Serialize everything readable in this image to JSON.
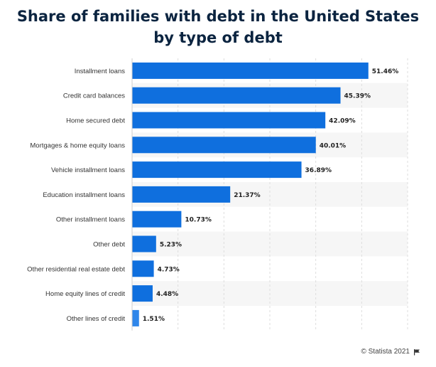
{
  "chart_data": {
    "type": "bar",
    "orientation": "horizontal",
    "title_lines": [
      "Share of families with debt in the United States",
      "by type of debt"
    ],
    "title": "Share of families with debt in the United States by type of debt",
    "categories": [
      "Installment loans",
      "Credit card balances",
      "Home secured debt",
      "Mortgages & home equity loans",
      "Vehicle installment loans",
      "Education installment loans",
      "Other installment loans",
      "Other debt",
      "Other residential real estate debt",
      "Home equity lines of credit",
      "Other lines of credit"
    ],
    "values": [
      51.46,
      45.39,
      42.09,
      40.01,
      36.89,
      21.37,
      10.73,
      5.23,
      4.73,
      4.48,
      1.51
    ],
    "value_labels": [
      "51.46%",
      "45.39%",
      "42.09%",
      "40.01%",
      "36.89%",
      "21.37%",
      "10.73%",
      "5.23%",
      "4.73%",
      "4.48%",
      "1.51%"
    ],
    "xlim": [
      0,
      60
    ],
    "xlabel": "",
    "ylabel": "",
    "grid": true,
    "bar_color": "#0f6fde",
    "last_bar_color": "#2f86ea",
    "band_color": "#f6f6f6",
    "grid_color": "#dddddd"
  },
  "footer": {
    "credit": "© Statista 2021"
  }
}
